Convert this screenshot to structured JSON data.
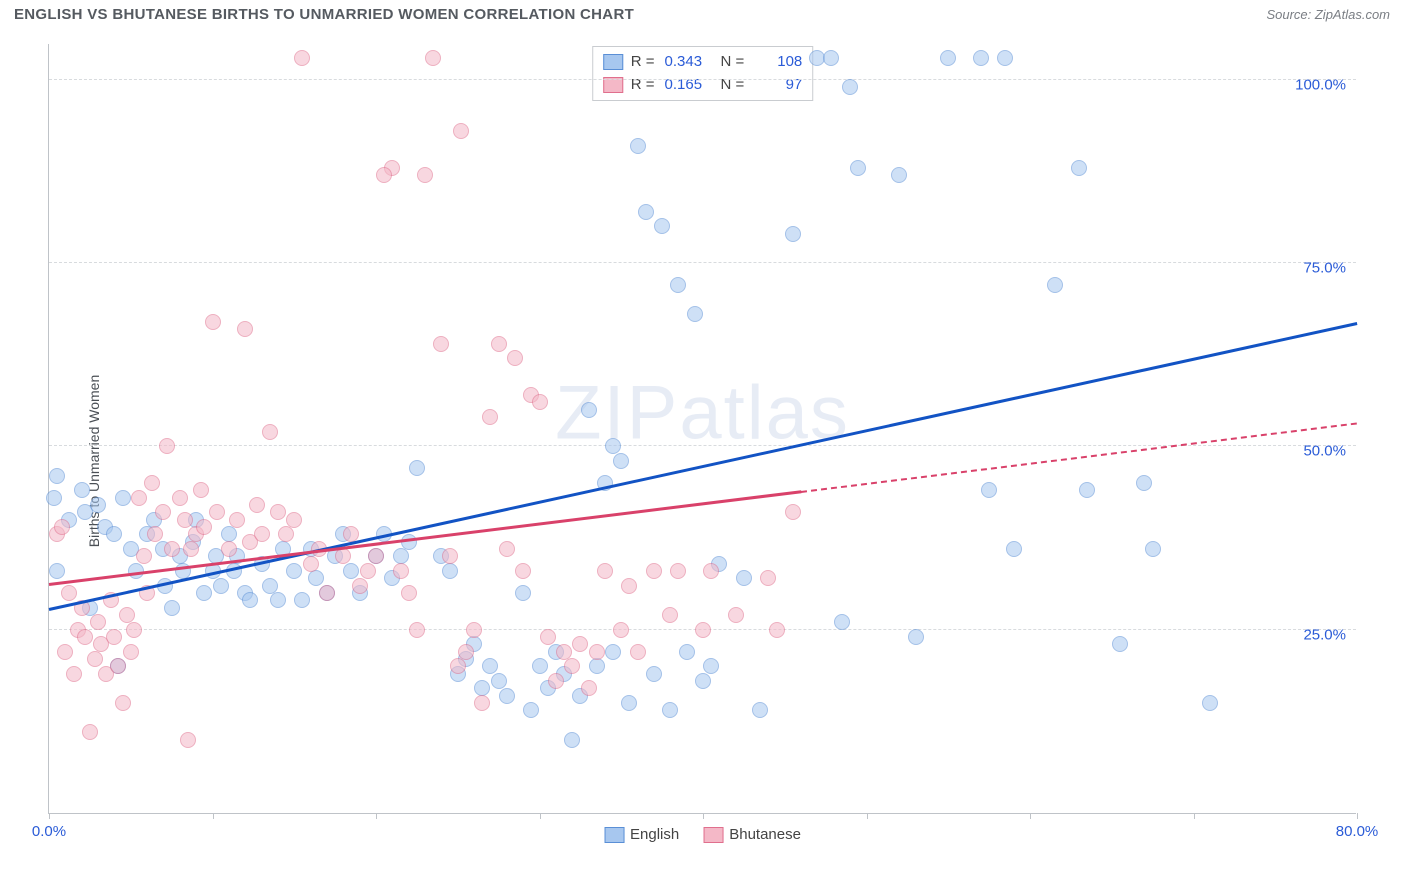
{
  "header": {
    "title": "ENGLISH VS BHUTANESE BIRTHS TO UNMARRIED WOMEN CORRELATION CHART",
    "source": "Source: ZipAtlas.com"
  },
  "chart": {
    "type": "scatter",
    "ylabel": "Births to Unmarried Women",
    "watermark": "ZIPatlas",
    "xlim": [
      0,
      80
    ],
    "ylim": [
      0,
      105
    ],
    "xticks": [
      0,
      10,
      20,
      30,
      40,
      50,
      60,
      70,
      80
    ],
    "xtick_labels": {
      "0": "0.0%",
      "80": "80.0%"
    },
    "yticks": [
      25,
      50,
      75,
      100
    ],
    "ytick_labels": {
      "25": "25.0%",
      "50": "50.0%",
      "75": "75.0%",
      "100": "100.0%"
    },
    "grid_color": "#d8dbde",
    "axis_color": "#bfc3c8",
    "background_color": "#ffffff",
    "label_color": "#2a5bd7",
    "marker_radius": 8,
    "marker_opacity": 0.55,
    "series": [
      {
        "name": "English",
        "fill": "#a7c7ef",
        "stroke": "#5a8fd6",
        "trend": {
          "y_at_x0": 27.5,
          "y_at_x80": 66.5,
          "color": "#1253c4",
          "solid_until_x": 80
        },
        "stats": {
          "R": "0.343",
          "N": "108"
        },
        "points": [
          [
            0.3,
            43
          ],
          [
            0.5,
            46
          ],
          [
            0.5,
            33
          ],
          [
            1.2,
            40
          ],
          [
            2.0,
            44
          ],
          [
            2.2,
            41
          ],
          [
            2.5,
            28
          ],
          [
            3.0,
            42
          ],
          [
            3.4,
            39
          ],
          [
            4.0,
            38
          ],
          [
            4.2,
            20
          ],
          [
            4.5,
            43
          ],
          [
            5.0,
            36
          ],
          [
            5.3,
            33
          ],
          [
            6.0,
            38
          ],
          [
            6.4,
            40
          ],
          [
            7.0,
            36
          ],
          [
            7.1,
            31
          ],
          [
            7.5,
            28
          ],
          [
            8.0,
            35
          ],
          [
            8.2,
            33
          ],
          [
            8.8,
            37
          ],
          [
            9.0,
            40
          ],
          [
            9.5,
            30
          ],
          [
            10.0,
            33
          ],
          [
            10.2,
            35
          ],
          [
            10.5,
            31
          ],
          [
            11.0,
            38
          ],
          [
            11.3,
            33
          ],
          [
            11.5,
            35
          ],
          [
            12.0,
            30
          ],
          [
            12.3,
            29
          ],
          [
            13.0,
            34
          ],
          [
            13.5,
            31
          ],
          [
            14.0,
            29
          ],
          [
            14.3,
            36
          ],
          [
            15.0,
            33
          ],
          [
            15.5,
            29
          ],
          [
            16.0,
            36
          ],
          [
            16.3,
            32
          ],
          [
            17.0,
            30
          ],
          [
            17.5,
            35
          ],
          [
            18.0,
            38
          ],
          [
            18.5,
            33
          ],
          [
            19.0,
            30
          ],
          [
            20.0,
            35
          ],
          [
            20.5,
            38
          ],
          [
            21.0,
            32
          ],
          [
            21.5,
            35
          ],
          [
            22.0,
            37
          ],
          [
            22.5,
            47
          ],
          [
            24.0,
            35
          ],
          [
            24.5,
            33
          ],
          [
            25.0,
            19
          ],
          [
            25.5,
            21
          ],
          [
            26.0,
            23
          ],
          [
            26.5,
            17
          ],
          [
            27.0,
            20
          ],
          [
            27.5,
            18
          ],
          [
            28.0,
            16
          ],
          [
            29.0,
            30
          ],
          [
            29.5,
            14
          ],
          [
            30.0,
            20
          ],
          [
            30.5,
            17
          ],
          [
            31.0,
            22
          ],
          [
            31.5,
            19
          ],
          [
            32.0,
            10
          ],
          [
            32.5,
            16
          ],
          [
            33.0,
            55
          ],
          [
            33.5,
            20
          ],
          [
            34.0,
            45
          ],
          [
            34.5,
            22
          ],
          [
            35.0,
            48
          ],
          [
            35.5,
            15
          ],
          [
            36.0,
            91
          ],
          [
            36.5,
            82
          ],
          [
            37.0,
            19
          ],
          [
            37.5,
            80
          ],
          [
            38.0,
            14
          ],
          [
            38.5,
            72
          ],
          [
            39.0,
            22
          ],
          [
            39.5,
            68
          ],
          [
            40.0,
            18
          ],
          [
            40.5,
            20
          ],
          [
            41.0,
            34
          ],
          [
            42.5,
            32
          ],
          [
            43.5,
            14
          ],
          [
            45.5,
            79
          ],
          [
            47.0,
            103
          ],
          [
            47.8,
            103
          ],
          [
            48.5,
            26
          ],
          [
            49.0,
            99
          ],
          [
            49.5,
            88
          ],
          [
            52.0,
            87
          ],
          [
            53.0,
            24
          ],
          [
            55.0,
            103
          ],
          [
            57.0,
            103
          ],
          [
            58.5,
            103
          ],
          [
            59.0,
            36
          ],
          [
            61.5,
            72
          ],
          [
            63.0,
            88
          ],
          [
            63.5,
            44
          ],
          [
            65.5,
            23
          ],
          [
            67.0,
            45
          ],
          [
            67.5,
            36
          ],
          [
            71.0,
            15
          ],
          [
            57.5,
            44
          ],
          [
            34.5,
            50
          ]
        ]
      },
      {
        "name": "Bhutanese",
        "fill": "#f4b8c7",
        "stroke": "#e06f8d",
        "trend": {
          "y_at_x0": 31.0,
          "y_at_x80": 53.0,
          "color": "#d9416a",
          "solid_until_x": 46
        },
        "stats": {
          "R": "0.165",
          "N": "97"
        },
        "points": [
          [
            0.5,
            38
          ],
          [
            0.8,
            39
          ],
          [
            1.0,
            22
          ],
          [
            1.2,
            30
          ],
          [
            1.5,
            19
          ],
          [
            1.8,
            25
          ],
          [
            2.0,
            28
          ],
          [
            2.2,
            24
          ],
          [
            2.5,
            11
          ],
          [
            2.8,
            21
          ],
          [
            3.0,
            26
          ],
          [
            3.2,
            23
          ],
          [
            3.5,
            19
          ],
          [
            3.8,
            29
          ],
          [
            4.0,
            24
          ],
          [
            4.2,
            20
          ],
          [
            4.5,
            15
          ],
          [
            4.8,
            27
          ],
          [
            5.0,
            22
          ],
          [
            5.2,
            25
          ],
          [
            5.5,
            43
          ],
          [
            5.8,
            35
          ],
          [
            6.0,
            30
          ],
          [
            6.3,
            45
          ],
          [
            6.5,
            38
          ],
          [
            7.0,
            41
          ],
          [
            7.2,
            50
          ],
          [
            7.5,
            36
          ],
          [
            8.0,
            43
          ],
          [
            8.3,
            40
          ],
          [
            8.7,
            36
          ],
          [
            9.0,
            38
          ],
          [
            9.3,
            44
          ],
          [
            9.5,
            39
          ],
          [
            10.0,
            67
          ],
          [
            10.3,
            41
          ],
          [
            11.0,
            36
          ],
          [
            11.5,
            40
          ],
          [
            12.0,
            66
          ],
          [
            12.3,
            37
          ],
          [
            12.7,
            42
          ],
          [
            13.0,
            38
          ],
          [
            13.5,
            52
          ],
          [
            14.0,
            41
          ],
          [
            14.5,
            38
          ],
          [
            15.0,
            40
          ],
          [
            15.5,
            103
          ],
          [
            16.0,
            34
          ],
          [
            16.5,
            36
          ],
          [
            17.0,
            30
          ],
          [
            18.0,
            35
          ],
          [
            18.5,
            38
          ],
          [
            19.0,
            31
          ],
          [
            19.5,
            33
          ],
          [
            20.0,
            35
          ],
          [
            21.0,
            88
          ],
          [
            21.5,
            33
          ],
          [
            22.0,
            30
          ],
          [
            22.5,
            25
          ],
          [
            23.0,
            87
          ],
          [
            23.5,
            103
          ],
          [
            24.0,
            64
          ],
          [
            24.5,
            35
          ],
          [
            25.0,
            20
          ],
          [
            25.2,
            93
          ],
          [
            25.5,
            22
          ],
          [
            26.0,
            25
          ],
          [
            26.5,
            15
          ],
          [
            27.0,
            54
          ],
          [
            27.5,
            64
          ],
          [
            28.0,
            36
          ],
          [
            28.5,
            62
          ],
          [
            29.0,
            33
          ],
          [
            29.5,
            57
          ],
          [
            30.0,
            56
          ],
          [
            30.5,
            24
          ],
          [
            31.0,
            18
          ],
          [
            31.5,
            22
          ],
          [
            32.0,
            20
          ],
          [
            32.5,
            23
          ],
          [
            33.0,
            17
          ],
          [
            33.5,
            22
          ],
          [
            34.0,
            33
          ],
          [
            35.0,
            25
          ],
          [
            35.5,
            31
          ],
          [
            36.0,
            22
          ],
          [
            37.0,
            33
          ],
          [
            38.0,
            27
          ],
          [
            38.5,
            33
          ],
          [
            40.0,
            25
          ],
          [
            40.5,
            33
          ],
          [
            42.0,
            27
          ],
          [
            44.0,
            32
          ],
          [
            44.5,
            25
          ],
          [
            45.5,
            41
          ],
          [
            20.5,
            87
          ],
          [
            8.5,
            10
          ]
        ]
      }
    ],
    "legend_top_labels": {
      "R": "R =",
      "N": "N ="
    },
    "legend_bottom_labels": [
      "English",
      "Bhutanese"
    ]
  }
}
